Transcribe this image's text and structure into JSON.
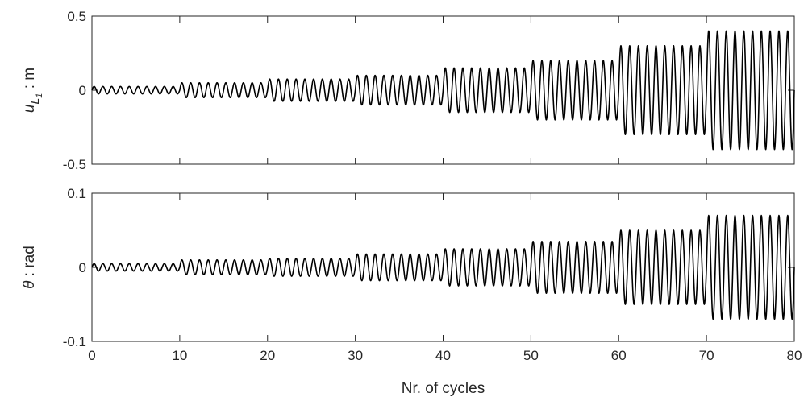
{
  "chart_data": [
    {
      "type": "line",
      "ylabel_base": "u",
      "ylabel_sub1": "L",
      "ylabel_sub2": "1",
      "ylabel_unit": " : m",
      "xlim": [
        0,
        80
      ],
      "ylim": [
        -0.5,
        0.5
      ],
      "x_ticks": [
        "0",
        "10",
        "20",
        "30",
        "40",
        "50",
        "60",
        "70",
        "80"
      ],
      "y_ticks": [
        "-0.5",
        "0",
        "0.5"
      ],
      "y_tick_values": [
        -0.5,
        0,
        0.5
      ],
      "grid": false,
      "series_color": "#000000",
      "cycles_per_block": 10,
      "block_start_cycles": [
        0,
        10,
        20,
        30,
        40,
        50,
        60,
        70
      ],
      "block_amplitudes": [
        0.025,
        0.05,
        0.075,
        0.1,
        0.15,
        0.2,
        0.3,
        0.4
      ]
    },
    {
      "type": "line",
      "ylabel_base": "θ",
      "ylabel_unit": " : rad",
      "xlabel": "Nr. of cycles",
      "xlim": [
        0,
        80
      ],
      "ylim": [
        -0.1,
        0.1
      ],
      "x_ticks": [
        "0",
        "10",
        "20",
        "30",
        "40",
        "50",
        "60",
        "70",
        "80"
      ],
      "y_ticks": [
        "-0.1",
        "0",
        "0.1"
      ],
      "y_tick_values": [
        -0.1,
        0,
        0.1
      ],
      "grid": false,
      "series_color": "#000000",
      "cycles_per_block": 10,
      "block_start_cycles": [
        0,
        10,
        20,
        30,
        40,
        50,
        60,
        70
      ],
      "block_amplitudes": [
        0.005,
        0.01,
        0.012,
        0.018,
        0.025,
        0.035,
        0.05,
        0.07
      ]
    }
  ]
}
